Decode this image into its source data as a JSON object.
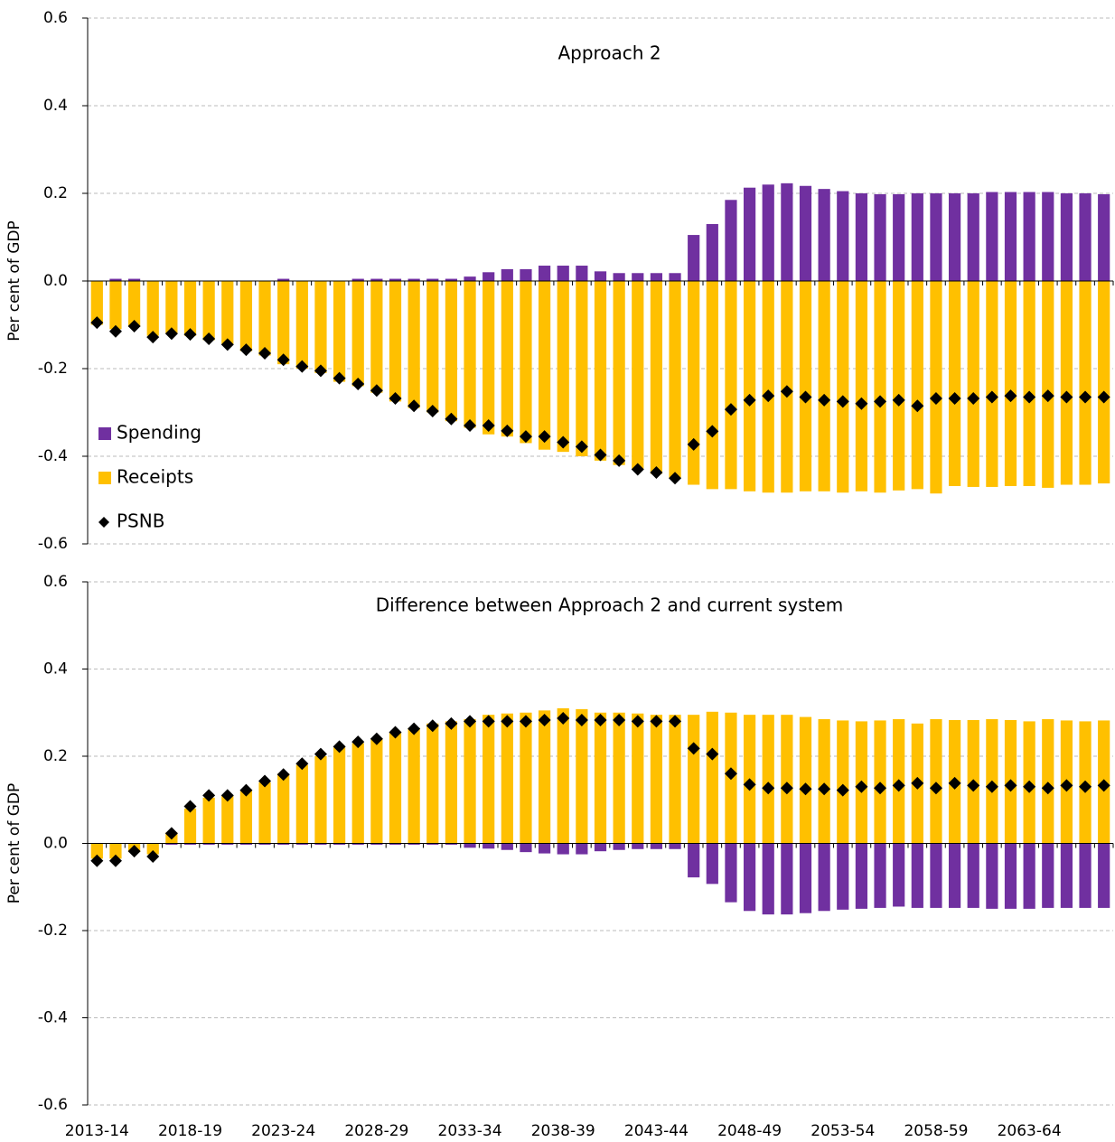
{
  "chart_data": [
    {
      "type": "bar",
      "title": "Approach 2",
      "y_label": "Per cent of GDP",
      "ylim": [
        -0.6,
        0.6
      ],
      "yticks": [
        0.6,
        0.4,
        0.2,
        {
          "value": 0,
          "label": "0.0"
        },
        -0.2,
        -0.4,
        -0.6
      ],
      "grid": true,
      "legend": "lower left",
      "series": [
        {
          "name": "Spending",
          "color": "#7030a0",
          "values": [
            0,
            0.005,
            0.005,
            0,
            0,
            0,
            0,
            0,
            0,
            0,
            0.005,
            0,
            0,
            0,
            0.005,
            0.005,
            0.005,
            0.005,
            0.005,
            0.005,
            0.01,
            0.02,
            0.027,
            0.027,
            0.035,
            0.035,
            0.035,
            0.022,
            0.018,
            0.018,
            0.018,
            0.018,
            0.105,
            0.13,
            0.185,
            0.213,
            0.22,
            0.223,
            0.217,
            0.21,
            0.205,
            0.2,
            0.198,
            0.198,
            0.2,
            0.2,
            0.2,
            0.2,
            0.203,
            0.203,
            0.203,
            0.203,
            0.2,
            0.2,
            0.198
          ]
        },
        {
          "name": "Receipts",
          "color": "#ffc000",
          "values": [
            -0.1,
            -0.11,
            -0.105,
            -0.125,
            -0.12,
            -0.125,
            -0.135,
            -0.145,
            -0.16,
            -0.17,
            -0.19,
            -0.2,
            -0.21,
            -0.23,
            -0.24,
            -0.255,
            -0.275,
            -0.29,
            -0.3,
            -0.32,
            -0.335,
            -0.35,
            -0.355,
            -0.37,
            -0.385,
            -0.39,
            -0.4,
            -0.41,
            -0.42,
            -0.43,
            -0.44,
            -0.45,
            -0.465,
            -0.475,
            -0.475,
            -0.48,
            -0.483,
            -0.483,
            -0.48,
            -0.48,
            -0.483,
            -0.48,
            -0.483,
            -0.478,
            -0.475,
            -0.485,
            -0.468,
            -0.47,
            -0.47,
            -0.468,
            -0.468,
            -0.472,
            -0.465,
            -0.465,
            -0.462
          ]
        },
        {
          "name": "PSNB",
          "color": "#000000",
          "type": "scatter",
          "values": [
            -0.095,
            -0.115,
            -0.103,
            -0.128,
            -0.12,
            -0.122,
            -0.132,
            -0.145,
            -0.157,
            -0.165,
            -0.18,
            -0.195,
            -0.205,
            -0.222,
            -0.235,
            -0.25,
            -0.268,
            -0.285,
            -0.297,
            -0.315,
            -0.33,
            -0.33,
            -0.342,
            -0.355,
            -0.355,
            -0.368,
            -0.378,
            -0.397,
            -0.41,
            -0.43,
            -0.437,
            -0.45,
            -0.373,
            -0.343,
            -0.293,
            -0.272,
            -0.262,
            -0.252,
            -0.265,
            -0.272,
            -0.275,
            -0.28,
            -0.275,
            -0.272,
            -0.285,
            -0.268,
            -0.268,
            -0.268,
            -0.265,
            -0.262,
            -0.265,
            -0.262,
            -0.265,
            -0.265,
            -0.265
          ]
        }
      ]
    },
    {
      "type": "bar",
      "title": "Difference between Approach 2 and current system",
      "y_label": "Per cent of GDP",
      "categories": [
        "2013-14",
        null,
        null,
        null,
        null,
        "2018-19",
        null,
        null,
        null,
        null,
        "2023-24",
        null,
        null,
        null,
        null,
        "2028-29",
        null,
        null,
        null,
        null,
        "2033-34",
        null,
        null,
        null,
        null,
        "2038-39",
        null,
        null,
        null,
        null,
        "2043-44",
        null,
        null,
        null,
        null,
        "2048-49",
        null,
        null,
        null,
        null,
        "2053-54",
        null,
        null,
        null,
        null,
        "2058-59",
        null,
        null,
        null,
        null,
        "2063-64",
        null,
        null,
        null,
        null
      ],
      "ylim": [
        -0.6,
        0.6
      ],
      "yticks": [
        0.6,
        0.4,
        0.2,
        {
          "value": 0,
          "label": "0.0"
        },
        -0.2,
        -0.4,
        -0.6
      ],
      "grid": true,
      "series": [
        {
          "color": "#7030a0",
          "values": [
            0,
            0,
            0,
            0,
            -0.003,
            -0.003,
            -0.003,
            -0.003,
            -0.003,
            -0.003,
            -0.003,
            -0.003,
            -0.003,
            -0.003,
            -0.003,
            -0.003,
            -0.003,
            -0.003,
            -0.003,
            -0.003,
            -0.01,
            -0.012,
            -0.015,
            -0.02,
            -0.023,
            -0.025,
            -0.025,
            -0.018,
            -0.015,
            -0.013,
            -0.013,
            -0.013,
            -0.078,
            -0.093,
            -0.135,
            -0.155,
            -0.163,
            -0.163,
            -0.16,
            -0.155,
            -0.152,
            -0.15,
            -0.148,
            -0.145,
            -0.148,
            -0.148,
            -0.148,
            -0.148,
            -0.15,
            -0.15,
            -0.15,
            -0.148,
            -0.148,
            -0.148,
            -0.148
          ]
        },
        {
          "color": "#ffc000",
          "values": [
            -0.035,
            -0.035,
            -0.02,
            -0.025,
            0.025,
            0.08,
            0.105,
            0.11,
            0.12,
            0.14,
            0.16,
            0.18,
            0.2,
            0.22,
            0.23,
            0.24,
            0.255,
            0.265,
            0.275,
            0.28,
            0.285,
            0.295,
            0.298,
            0.3,
            0.305,
            0.31,
            0.308,
            0.3,
            0.3,
            0.298,
            0.295,
            0.295,
            0.295,
            0.302,
            0.3,
            0.295,
            0.295,
            0.295,
            0.29,
            0.285,
            0.282,
            0.28,
            0.282,
            0.285,
            0.275,
            0.285,
            0.283,
            0.283,
            0.285,
            0.283,
            0.28,
            0.285,
            0.282,
            0.28,
            0.282
          ]
        },
        {
          "color": "#000000",
          "type": "scatter",
          "values": [
            -0.04,
            -0.04,
            -0.018,
            -0.03,
            0.023,
            0.085,
            0.11,
            0.11,
            0.122,
            0.143,
            0.158,
            0.183,
            0.205,
            0.222,
            0.233,
            0.24,
            0.255,
            0.263,
            0.27,
            0.275,
            0.28,
            0.28,
            0.28,
            0.28,
            0.283,
            0.287,
            0.283,
            0.283,
            0.283,
            0.28,
            0.28,
            0.28,
            0.218,
            0.205,
            0.16,
            0.135,
            0.127,
            0.127,
            0.125,
            0.125,
            0.122,
            0.13,
            0.127,
            0.133,
            0.138,
            0.127,
            0.138,
            0.133,
            0.13,
            0.133,
            0.13,
            0.127,
            0.133,
            0.13,
            0.133
          ]
        }
      ]
    }
  ]
}
